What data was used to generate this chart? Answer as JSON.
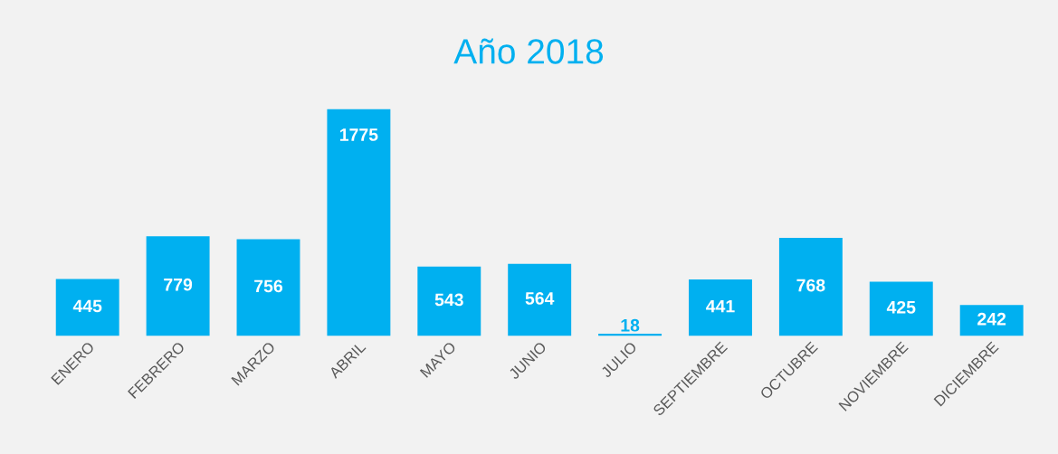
{
  "chart_data": {
    "type": "bar",
    "title": "Año 2018",
    "categories": [
      "ENERO",
      "FEBRERO",
      "MARZO",
      "ABRIL",
      "MAYO",
      "JUNIO",
      "JULIO",
      "SEPTIEMBRE",
      "OCTUBRE",
      "NOVIEMBRE",
      "DICIEMBRE"
    ],
    "values": [
      445,
      779,
      756,
      1775,
      543,
      564,
      18,
      441,
      768,
      425,
      242
    ],
    "color": "#00b0f0",
    "data_labels": true,
    "grid": false,
    "legend": false,
    "tick_labels": "x"
  }
}
